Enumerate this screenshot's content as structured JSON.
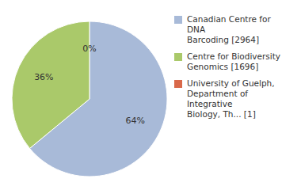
{
  "chart_data": {
    "type": "pie",
    "categories": [
      "Canadian Centre for DNA\nBarcoding [2964]",
      "Centre for Biodiversity\nGenomics [1696]",
      "University of Guelph,\nDepartment of Integrative\nBiology, Th... [1]"
    ],
    "values": [
      64,
      36,
      0
    ],
    "value_labels": [
      "64%",
      "36%",
      "0%"
    ],
    "colors": [
      "#a8bad8",
      "#aac96a",
      "#d9694a"
    ],
    "data_labels": true,
    "legend": "right"
  }
}
